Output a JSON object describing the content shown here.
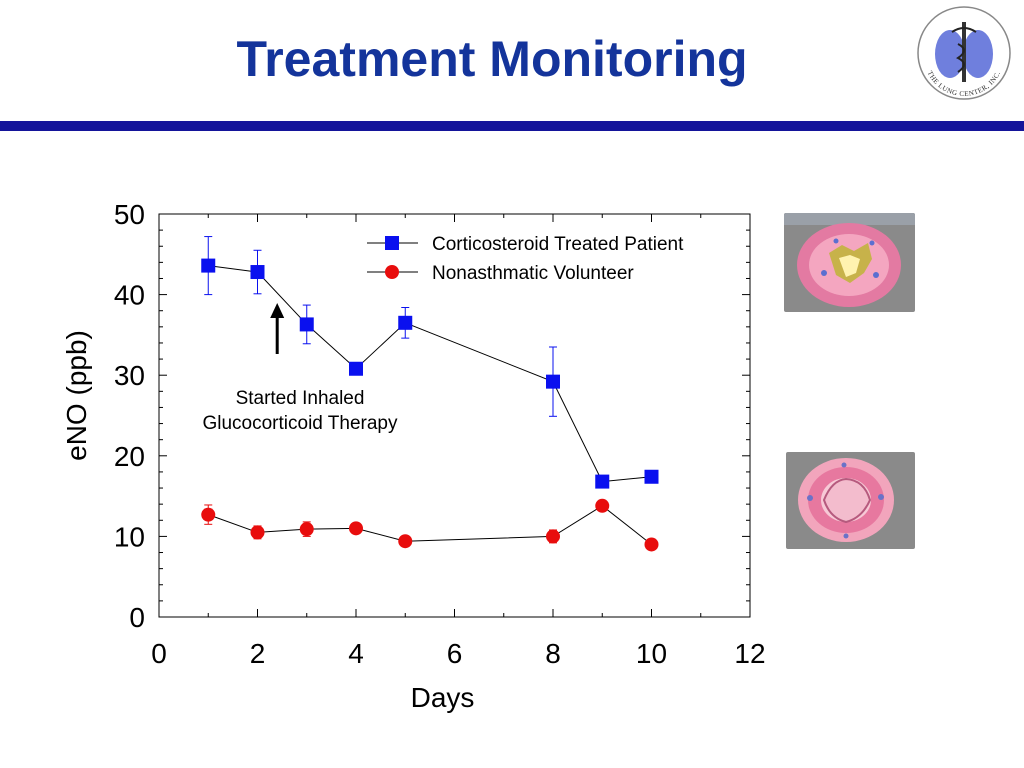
{
  "slide": {
    "title": "Treatment Monitoring",
    "logo_text": "THE LUNG CENTER, INC.",
    "rule_color": "#14149a",
    "title_color": "#14349b"
  },
  "images": [
    {
      "name": "airway-cross-section-inflamed",
      "description_icon": "inflamed-airway-illustration"
    },
    {
      "name": "airway-cross-section-normal",
      "description_icon": "normal-airway-illustration"
    }
  ],
  "chart_data": {
    "type": "line",
    "title": "",
    "xlabel": "Days",
    "ylabel": "eNO (ppb)",
    "xlim": [
      0,
      12
    ],
    "ylim": [
      0,
      50
    ],
    "xticks": [
      0,
      2,
      4,
      6,
      8,
      10,
      12
    ],
    "yticks": [
      0,
      10,
      20,
      30,
      40,
      50
    ],
    "grid": false,
    "legend_position": "top-right",
    "series": [
      {
        "name": "Corticosteroid Treated Patient",
        "marker": "square",
        "color": "#0a10ef",
        "x": [
          1,
          2,
          3,
          4,
          5,
          8,
          9,
          10
        ],
        "y": [
          43.6,
          42.8,
          36.3,
          30.8,
          36.5,
          29.2,
          16.8,
          17.4
        ],
        "err": [
          3.6,
          2.7,
          2.4,
          0,
          1.9,
          4.3,
          0,
          0
        ]
      },
      {
        "name": "Nonasthmatic Volunteer",
        "marker": "circle",
        "color": "#e80d0d",
        "x": [
          1,
          2,
          3,
          4,
          5,
          8,
          9,
          10
        ],
        "y": [
          12.7,
          10.5,
          10.9,
          11.0,
          9.4,
          10.0,
          13.8,
          9.0
        ],
        "err": [
          1.2,
          0.8,
          0.9,
          0,
          0,
          0.8,
          0,
          0
        ]
      }
    ],
    "annotations": [
      {
        "line1": "Started Inhaled",
        "line2": "Glucocorticoid Therapy",
        "arrow_x": 2.4
      }
    ]
  }
}
